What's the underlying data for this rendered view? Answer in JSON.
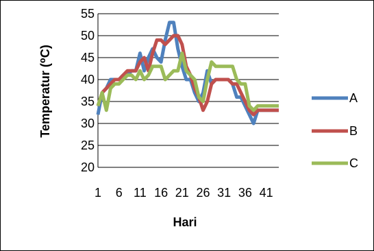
{
  "chart_data": {
    "type": "line",
    "title": "",
    "xlabel": "Hari",
    "ylabel": "Temperatur (⁰C)",
    "ylim": [
      20,
      55
    ],
    "yticks": [
      20,
      25,
      30,
      35,
      40,
      45,
      50,
      55
    ],
    "xtick_labels": [
      "1",
      "6",
      "11",
      "16",
      "21",
      "26",
      "31",
      "36",
      "41"
    ],
    "xtick_positions": [
      1,
      6,
      11,
      16,
      21,
      26,
      31,
      36,
      41
    ],
    "xlim": [
      1,
      44
    ],
    "grid": true,
    "legend_position": "right",
    "series": [
      {
        "name": "A",
        "color": "#4F81BD",
        "x": [
          1,
          2,
          3,
          4,
          5,
          6,
          7,
          8,
          9,
          10,
          11,
          12,
          13,
          14,
          15,
          16,
          17,
          18,
          19,
          20,
          21,
          22,
          23,
          24,
          25,
          26,
          27,
          28,
          29,
          30,
          31,
          32,
          33,
          34,
          35,
          36,
          37,
          38,
          39,
          40,
          41,
          42,
          43,
          44
        ],
        "values": [
          32,
          37,
          38,
          40,
          40,
          40,
          41,
          41,
          42,
          42,
          46,
          42,
          45,
          47,
          45,
          44,
          49,
          53,
          53,
          47,
          43,
          40,
          40,
          37,
          35,
          37,
          42,
          39,
          40,
          40,
          40,
          40,
          39,
          36,
          36,
          34,
          32,
          30,
          33,
          33,
          33,
          33,
          33,
          33
        ]
      },
      {
        "name": "B",
        "color": "#C0504D",
        "x": [
          1,
          2,
          3,
          4,
          5,
          6,
          7,
          8,
          9,
          10,
          11,
          12,
          13,
          14,
          15,
          16,
          17,
          18,
          19,
          20,
          21,
          22,
          23,
          24,
          25,
          26,
          27,
          28,
          29,
          30,
          31,
          32,
          33,
          34,
          35,
          36,
          37,
          38,
          39,
          40,
          41,
          42,
          43,
          44
        ],
        "values": [
          34,
          37,
          38,
          39,
          40,
          40,
          41,
          42,
          42,
          42,
          44,
          45,
          42,
          46,
          49,
          49,
          48,
          49,
          50,
          50,
          48,
          43,
          41,
          38,
          36,
          33,
          35,
          39,
          40,
          40,
          40,
          40,
          39,
          39,
          37,
          35,
          33,
          32,
          33,
          33,
          33,
          33,
          33,
          33
        ]
      },
      {
        "name": "C",
        "color": "#9BBB59",
        "x": [
          1,
          2,
          3,
          4,
          5,
          6,
          7,
          8,
          9,
          10,
          11,
          12,
          13,
          14,
          15,
          16,
          17,
          18,
          19,
          20,
          21,
          22,
          23,
          24,
          25,
          26,
          27,
          28,
          29,
          30,
          31,
          32,
          33,
          34,
          35,
          36,
          37,
          38,
          39,
          40,
          41,
          42,
          43,
          44
        ],
        "values": [
          34,
          37,
          33,
          38,
          39,
          39,
          40,
          41,
          41,
          40,
          42,
          40,
          41,
          43,
          43,
          43,
          40,
          41,
          42,
          42,
          46,
          42,
          41,
          40,
          36,
          35,
          40,
          44,
          43,
          43,
          43,
          43,
          43,
          40,
          39,
          39,
          34,
          33,
          34,
          34,
          34,
          34,
          34,
          34
        ]
      }
    ]
  }
}
